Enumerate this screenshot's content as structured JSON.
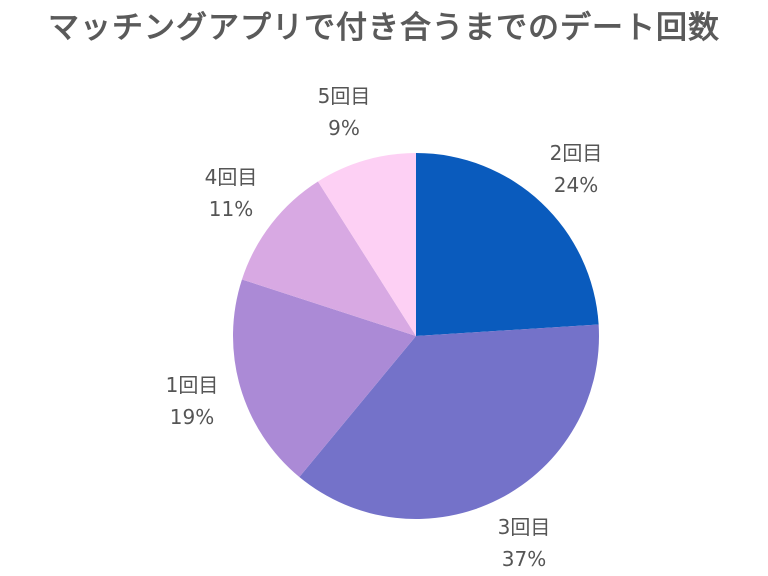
{
  "chart_data": {
    "type": "pie",
    "title": "マッチングアプリで付き合うまでのデート回数",
    "slices": [
      {
        "label": "2回目",
        "percent_label": "24%",
        "value": 24,
        "color": "#0a5bbd"
      },
      {
        "label": "3回目",
        "percent_label": "37%",
        "value": 37,
        "color": "#7472c9"
      },
      {
        "label": "1回目",
        "percent_label": "19%",
        "value": 19,
        "color": "#ab8ad6"
      },
      {
        "label": "4回目",
        "percent_label": "11%",
        "value": 11,
        "color": "#d8a9e3"
      },
      {
        "label": "5回目",
        "percent_label": "9%",
        "value": 9,
        "color": "#fdd0f4"
      }
    ],
    "start": "12 o'clock",
    "direction": "clockwise",
    "legend": "none"
  }
}
